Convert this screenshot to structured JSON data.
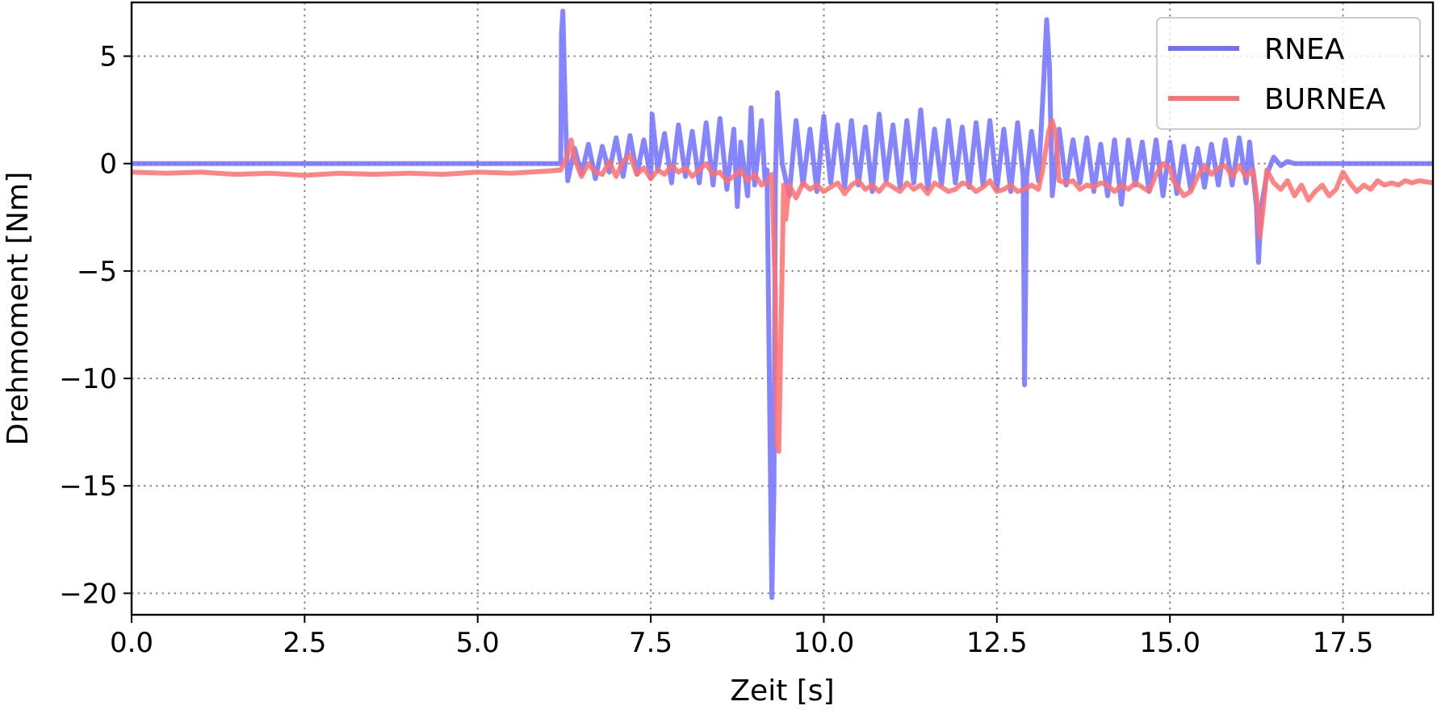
{
  "chart_data": {
    "type": "line",
    "title": "",
    "xlabel": "Zeit [s]",
    "ylabel": "Drehmoment [Nm]",
    "xlim": [
      0,
      18.8
    ],
    "ylim": [
      -21,
      7.5
    ],
    "xticks": [
      0.0,
      2.5,
      5.0,
      7.5,
      10.0,
      12.5,
      15.0,
      17.5
    ],
    "xtick_labels": [
      "0.0",
      "2.5",
      "5.0",
      "7.5",
      "10.0",
      "12.5",
      "15.0",
      "17.5"
    ],
    "yticks": [
      5,
      0,
      -5,
      -10,
      -15,
      -20
    ],
    "ytick_labels": [
      "5",
      "0",
      "−5",
      "−10",
      "−15",
      "−20"
    ],
    "grid": true,
    "grid_style": "dotted",
    "legend": {
      "position": "top-right"
    },
    "series": [
      {
        "name": "RNEA",
        "color": "#7070ff",
        "points": [
          [
            0.0,
            0.0
          ],
          [
            6.1,
            0.0
          ],
          [
            6.2,
            0.0
          ],
          [
            6.21,
            6.0
          ],
          [
            6.23,
            7.1
          ],
          [
            6.27,
            2.0
          ],
          [
            6.3,
            -0.8
          ],
          [
            6.4,
            0.7
          ],
          [
            6.5,
            -0.5
          ],
          [
            6.6,
            0.9
          ],
          [
            6.7,
            -0.7
          ],
          [
            6.8,
            0.8
          ],
          [
            6.9,
            -0.4
          ],
          [
            7.0,
            1.2
          ],
          [
            7.1,
            -0.6
          ],
          [
            7.2,
            1.3
          ],
          [
            7.3,
            -0.5
          ],
          [
            7.4,
            1.1
          ],
          [
            7.5,
            -0.7
          ],
          [
            7.52,
            2.3
          ],
          [
            7.6,
            -0.3
          ],
          [
            7.7,
            1.4
          ],
          [
            7.8,
            -0.9
          ],
          [
            7.9,
            1.8
          ],
          [
            8.0,
            -0.6
          ],
          [
            8.1,
            1.5
          ],
          [
            8.2,
            -0.9
          ],
          [
            8.3,
            1.9
          ],
          [
            8.4,
            -1.0
          ],
          [
            8.5,
            2.1
          ],
          [
            8.6,
            -1.2
          ],
          [
            8.7,
            1.6
          ],
          [
            8.75,
            -2.0
          ],
          [
            8.8,
            1.0
          ],
          [
            8.9,
            -1.5
          ],
          [
            8.95,
            2.6
          ],
          [
            9.0,
            -1.0
          ],
          [
            9.1,
            2.0
          ],
          [
            9.15,
            -0.8
          ],
          [
            9.18,
            -0.3
          ],
          [
            9.22,
            -12.0
          ],
          [
            9.25,
            -20.2
          ],
          [
            9.28,
            -15.0
          ],
          [
            9.3,
            -1.0
          ],
          [
            9.33,
            3.3
          ],
          [
            9.4,
            0.0
          ],
          [
            9.5,
            -1.5
          ],
          [
            9.6,
            2.0
          ],
          [
            9.7,
            -1.0
          ],
          [
            9.8,
            1.6
          ],
          [
            9.9,
            -1.3
          ],
          [
            10.0,
            2.2
          ],
          [
            10.1,
            -0.9
          ],
          [
            10.2,
            1.8
          ],
          [
            10.3,
            -1.1
          ],
          [
            10.4,
            2.0
          ],
          [
            10.5,
            -1.0
          ],
          [
            10.6,
            1.7
          ],
          [
            10.7,
            -1.3
          ],
          [
            10.8,
            2.3
          ],
          [
            10.9,
            -0.8
          ],
          [
            11.0,
            1.8
          ],
          [
            11.1,
            -1.1
          ],
          [
            11.2,
            2.0
          ],
          [
            11.3,
            -0.9
          ],
          [
            11.4,
            2.5
          ],
          [
            11.5,
            -1.2
          ],
          [
            11.6,
            1.6
          ],
          [
            11.7,
            -1.0
          ],
          [
            11.8,
            2.0
          ],
          [
            11.9,
            -0.9
          ],
          [
            12.0,
            1.7
          ],
          [
            12.1,
            -1.1
          ],
          [
            12.2,
            1.9
          ],
          [
            12.3,
            -1.0
          ],
          [
            12.4,
            2.0
          ],
          [
            12.5,
            -1.2
          ],
          [
            12.6,
            1.6
          ],
          [
            12.7,
            -1.3
          ],
          [
            12.8,
            1.9
          ],
          [
            12.88,
            -0.6
          ],
          [
            12.9,
            -10.3
          ],
          [
            12.93,
            -0.6
          ],
          [
            13.0,
            1.5
          ],
          [
            13.1,
            -0.8
          ],
          [
            13.18,
            4.0
          ],
          [
            13.22,
            6.7
          ],
          [
            13.26,
            4.5
          ],
          [
            13.3,
            -1.5
          ],
          [
            13.4,
            1.6
          ],
          [
            13.5,
            -1.0
          ],
          [
            13.6,
            1.1
          ],
          [
            13.7,
            -0.9
          ],
          [
            13.8,
            1.2
          ],
          [
            13.9,
            -1.3
          ],
          [
            14.0,
            0.9
          ],
          [
            14.1,
            -1.5
          ],
          [
            14.2,
            1.1
          ],
          [
            14.3,
            -1.9
          ],
          [
            14.4,
            1.1
          ],
          [
            14.5,
            -1.0
          ],
          [
            14.6,
            1.0
          ],
          [
            14.7,
            -1.3
          ],
          [
            14.8,
            1.1
          ],
          [
            14.9,
            -1.5
          ],
          [
            15.0,
            1.0
          ],
          [
            15.1,
            -1.4
          ],
          [
            15.2,
            0.8
          ],
          [
            15.3,
            -1.2
          ],
          [
            15.4,
            0.7
          ],
          [
            15.5,
            -1.1
          ],
          [
            15.6,
            0.9
          ],
          [
            15.7,
            -1.0
          ],
          [
            15.8,
            1.1
          ],
          [
            15.9,
            -1.0
          ],
          [
            16.0,
            1.2
          ],
          [
            16.1,
            -0.9
          ],
          [
            16.15,
            1.0
          ],
          [
            16.2,
            -0.5
          ],
          [
            16.25,
            -2.0
          ],
          [
            16.28,
            -4.6
          ],
          [
            16.32,
            -2.0
          ],
          [
            16.4,
            -0.5
          ],
          [
            16.5,
            0.3
          ],
          [
            16.6,
            -0.1
          ],
          [
            16.7,
            0.1
          ],
          [
            16.8,
            0.0
          ],
          [
            18.8,
            0.0
          ]
        ]
      },
      {
        "name": "BURNEA",
        "color": "#ff7070",
        "points": [
          [
            0.0,
            -0.4
          ],
          [
            0.5,
            -0.45
          ],
          [
            1.0,
            -0.4
          ],
          [
            1.5,
            -0.5
          ],
          [
            2.0,
            -0.45
          ],
          [
            2.5,
            -0.55
          ],
          [
            3.0,
            -0.45
          ],
          [
            3.5,
            -0.5
          ],
          [
            4.0,
            -0.45
          ],
          [
            4.5,
            -0.5
          ],
          [
            5.0,
            -0.4
          ],
          [
            5.5,
            -0.45
          ],
          [
            6.0,
            -0.35
          ],
          [
            6.2,
            -0.3
          ],
          [
            6.3,
            0.4
          ],
          [
            6.35,
            1.1
          ],
          [
            6.4,
            0.2
          ],
          [
            6.5,
            -0.6
          ],
          [
            6.6,
            0.0
          ],
          [
            6.7,
            -0.4
          ],
          [
            6.8,
            -0.5
          ],
          [
            6.9,
            0.1
          ],
          [
            7.0,
            -0.6
          ],
          [
            7.1,
            0.1
          ],
          [
            7.2,
            0.4
          ],
          [
            7.3,
            -0.5
          ],
          [
            7.4,
            -0.2
          ],
          [
            7.5,
            -0.7
          ],
          [
            7.6,
            -0.3
          ],
          [
            7.7,
            -0.5
          ],
          [
            7.8,
            -0.1
          ],
          [
            7.9,
            -0.4
          ],
          [
            8.0,
            -0.2
          ],
          [
            8.1,
            -0.6
          ],
          [
            8.2,
            -0.3
          ],
          [
            8.3,
            0.0
          ],
          [
            8.4,
            -0.5
          ],
          [
            8.5,
            -0.4
          ],
          [
            8.6,
            -0.8
          ],
          [
            8.7,
            -0.6
          ],
          [
            8.8,
            -0.3
          ],
          [
            8.9,
            -0.8
          ],
          [
            9.0,
            -0.5
          ],
          [
            9.1,
            -1.0
          ],
          [
            9.2,
            -0.8
          ],
          [
            9.25,
            -0.5
          ],
          [
            9.3,
            -6.0
          ],
          [
            9.32,
            -13.0
          ],
          [
            9.35,
            -13.4
          ],
          [
            9.38,
            -8.0
          ],
          [
            9.42,
            -1.0
          ],
          [
            9.45,
            -2.6
          ],
          [
            9.5,
            -1.0
          ],
          [
            9.6,
            -1.6
          ],
          [
            9.7,
            -0.9
          ],
          [
            9.8,
            -1.2
          ],
          [
            9.9,
            -1.0
          ],
          [
            10.0,
            -1.3
          ],
          [
            10.1,
            -1.1
          ],
          [
            10.2,
            -0.9
          ],
          [
            10.3,
            -1.4
          ],
          [
            10.4,
            -1.0
          ],
          [
            10.5,
            -0.8
          ],
          [
            10.6,
            -1.2
          ],
          [
            10.7,
            -1.0
          ],
          [
            10.8,
            -1.3
          ],
          [
            10.9,
            -0.9
          ],
          [
            11.0,
            -1.1
          ],
          [
            11.1,
            -1.3
          ],
          [
            11.2,
            -0.9
          ],
          [
            11.3,
            -1.2
          ],
          [
            11.4,
            -1.0
          ],
          [
            11.5,
            -1.4
          ],
          [
            11.6,
            -0.9
          ],
          [
            11.7,
            -1.1
          ],
          [
            11.8,
            -1.3
          ],
          [
            11.9,
            -1.2
          ],
          [
            12.0,
            -0.9
          ],
          [
            12.1,
            -1.0
          ],
          [
            12.2,
            -1.3
          ],
          [
            12.3,
            -1.1
          ],
          [
            12.4,
            -0.8
          ],
          [
            12.5,
            -1.3
          ],
          [
            12.6,
            -1.2
          ],
          [
            12.7,
            -1.0
          ],
          [
            12.8,
            -1.3
          ],
          [
            12.9,
            -1.2
          ],
          [
            13.0,
            -1.0
          ],
          [
            13.1,
            -1.2
          ],
          [
            13.15,
            -0.5
          ],
          [
            13.25,
            1.5
          ],
          [
            13.3,
            2.0
          ],
          [
            13.35,
            1.4
          ],
          [
            13.4,
            -0.8
          ],
          [
            13.5,
            -0.9
          ],
          [
            13.6,
            -0.8
          ],
          [
            13.7,
            -1.2
          ],
          [
            13.8,
            -1.0
          ],
          [
            13.9,
            -1.1
          ],
          [
            14.0,
            -0.9
          ],
          [
            14.1,
            -1.0
          ],
          [
            14.2,
            -1.3
          ],
          [
            14.3,
            -1.0
          ],
          [
            14.4,
            -1.2
          ],
          [
            14.5,
            -0.9
          ],
          [
            14.6,
            -1.1
          ],
          [
            14.7,
            -1.3
          ],
          [
            14.8,
            -0.5
          ],
          [
            14.9,
            0.0
          ],
          [
            15.0,
            -0.2
          ],
          [
            15.05,
            -0.8
          ],
          [
            15.1,
            -1.0
          ],
          [
            15.2,
            -1.5
          ],
          [
            15.3,
            -1.3
          ],
          [
            15.4,
            -0.6
          ],
          [
            15.5,
            -0.1
          ],
          [
            15.6,
            -0.5
          ],
          [
            15.7,
            -0.2
          ],
          [
            15.8,
            -0.1
          ],
          [
            15.9,
            -0.6
          ],
          [
            16.0,
            -0.1
          ],
          [
            16.1,
            -0.6
          ],
          [
            16.2,
            -0.3
          ],
          [
            16.25,
            -1.5
          ],
          [
            16.3,
            -3.4
          ],
          [
            16.35,
            -2.0
          ],
          [
            16.4,
            -0.3
          ],
          [
            16.5,
            -0.9
          ],
          [
            16.6,
            -1.2
          ],
          [
            16.7,
            -0.8
          ],
          [
            16.8,
            -1.5
          ],
          [
            16.9,
            -1.0
          ],
          [
            17.0,
            -1.7
          ],
          [
            17.1,
            -1.3
          ],
          [
            17.2,
            -1.0
          ],
          [
            17.3,
            -1.5
          ],
          [
            17.4,
            -1.2
          ],
          [
            17.5,
            -0.4
          ],
          [
            17.6,
            -0.9
          ],
          [
            17.7,
            -1.3
          ],
          [
            17.8,
            -1.0
          ],
          [
            17.9,
            -1.2
          ],
          [
            18.0,
            -0.8
          ],
          [
            18.1,
            -1.0
          ],
          [
            18.2,
            -0.9
          ],
          [
            18.3,
            -1.0
          ],
          [
            18.4,
            -0.8
          ],
          [
            18.5,
            -0.9
          ],
          [
            18.6,
            -0.8
          ],
          [
            18.8,
            -0.9
          ]
        ]
      }
    ]
  }
}
